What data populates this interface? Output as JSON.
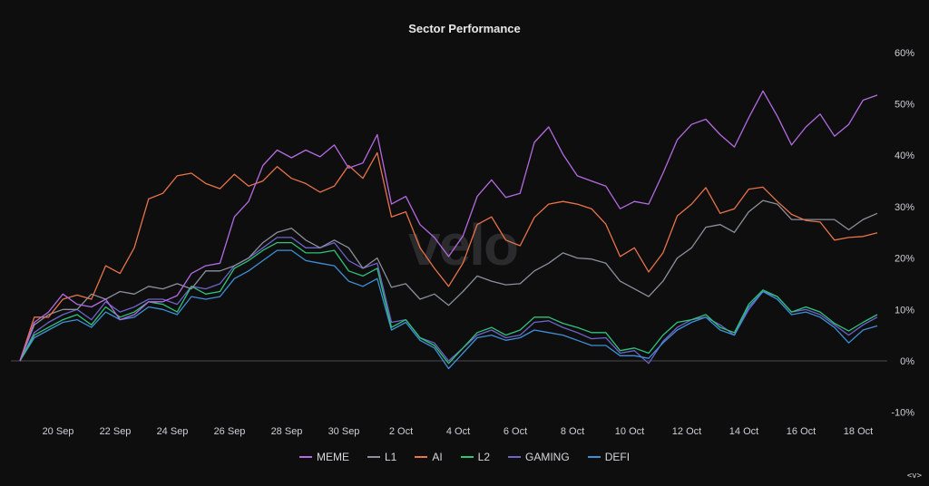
{
  "chart_data": {
    "type": "line",
    "title": "Sector Performance",
    "watermark": "velo",
    "corner_label": "<v>",
    "xlabel": "",
    "ylabel": "",
    "ylim": [
      -10,
      60
    ],
    "y_ticks": [
      "60%",
      "50%",
      "40%",
      "30%",
      "20%",
      "10%",
      "0%",
      "-10%"
    ],
    "y_tick_values": [
      60,
      50,
      40,
      30,
      20,
      10,
      0,
      -10
    ],
    "x_ticks": [
      "20 Sep",
      "22 Sep",
      "24 Sep",
      "26 Sep",
      "28 Sep",
      "30 Sep",
      "2 Oct",
      "4 Oct",
      "6 Oct",
      "8 Oct",
      "10 Oct",
      "12 Oct",
      "14 Oct",
      "16 Oct",
      "18 Oct"
    ],
    "grid": false,
    "legend_position": "bottom",
    "x": [
      "18 Sep 16:00",
      "19 Sep 04:00",
      "19 Sep 16:00",
      "20 Sep 04:00",
      "20 Sep 16:00",
      "21 Sep 04:00",
      "21 Sep 16:00",
      "22 Sep 04:00",
      "22 Sep 16:00",
      "23 Sep 04:00",
      "23 Sep 16:00",
      "24 Sep 04:00",
      "24 Sep 16:00",
      "25 Sep 04:00",
      "25 Sep 16:00",
      "26 Sep 04:00",
      "26 Sep 16:00",
      "27 Sep 04:00",
      "27 Sep 16:00",
      "28 Sep 04:00",
      "28 Sep 16:00",
      "29 Sep 04:00",
      "29 Sep 16:00",
      "30 Sep 04:00",
      "30 Sep 16:00",
      "1 Oct 04:00",
      "1 Oct 16:00",
      "2 Oct 04:00",
      "2 Oct 16:00",
      "3 Oct 04:00",
      "3 Oct 16:00",
      "4 Oct 04:00",
      "4 Oct 16:00",
      "5 Oct 04:00",
      "5 Oct 16:00",
      "6 Oct 04:00",
      "6 Oct 16:00",
      "7 Oct 04:00",
      "7 Oct 16:00",
      "8 Oct 04:00",
      "8 Oct 16:00",
      "9 Oct 04:00",
      "9 Oct 16:00",
      "10 Oct 04:00",
      "10 Oct 16:00",
      "11 Oct 04:00",
      "11 Oct 16:00",
      "12 Oct 04:00",
      "12 Oct 16:00",
      "13 Oct 04:00",
      "13 Oct 16:00",
      "14 Oct 04:00",
      "14 Oct 16:00",
      "15 Oct 04:00",
      "15 Oct 16:00",
      "16 Oct 04:00",
      "16 Oct 16:00",
      "17 Oct 04:00",
      "17 Oct 16:00",
      "18 Oct 04:00",
      "18 Oct 16:00"
    ],
    "series": [
      {
        "name": "MEME",
        "color": "#b36be0",
        "values": [
          0,
          7.5,
          9.5,
          13,
          11,
          10.5,
          12,
          8,
          9,
          11.5,
          11.5,
          12.7,
          17,
          18.5,
          19,
          28,
          31,
          38,
          41,
          39.5,
          41,
          39.7,
          42,
          37.5,
          38.5,
          44,
          30.5,
          32,
          26.5,
          24,
          20.3,
          24.3,
          32,
          35.2,
          31.8,
          32.6,
          42.5,
          45.5,
          40.2,
          36,
          35,
          34,
          29.6,
          31,
          30.5,
          36.5,
          43,
          46,
          47,
          44,
          41.6,
          47.3,
          52.5,
          47.6,
          42,
          45.5,
          48,
          43.7,
          46,
          50.7,
          51.7
        ]
      },
      {
        "name": "L1",
        "color": "#8b909c",
        "values": [
          0,
          7,
          9,
          10,
          10,
          13,
          12,
          13.5,
          13,
          14.5,
          14,
          15,
          14,
          17.5,
          17.5,
          18.5,
          20,
          23,
          25,
          25.8,
          23.5,
          22,
          23.5,
          22,
          18,
          20,
          14.3,
          15,
          12,
          13,
          10.8,
          13.5,
          16.5,
          15.5,
          14.8,
          15,
          17.5,
          19,
          21,
          20,
          19.8,
          19,
          15.5,
          14,
          12.5,
          15.5,
          20,
          22,
          26,
          26.5,
          25,
          29,
          31.2,
          30.5,
          27.5,
          27.5,
          27.5,
          27.5,
          25.5,
          27.5,
          28.7
        ]
      },
      {
        "name": "AI",
        "color": "#e8734a",
        "values": [
          0,
          8.5,
          8.5,
          12,
          12.8,
          12,
          18.5,
          17,
          22,
          31.5,
          32.6,
          36,
          36.5,
          34.5,
          33.5,
          36.3,
          34,
          35,
          37.8,
          35.5,
          34.5,
          32.8,
          34,
          38,
          35.5,
          40.5,
          28,
          29,
          22,
          18,
          14.5,
          19,
          26.5,
          28,
          23.5,
          22.4,
          27.9,
          30.5,
          31,
          30.5,
          29.6,
          26.6,
          20.3,
          22,
          17.3,
          21,
          28.2,
          30.5,
          33.7,
          28.7,
          29.6,
          33.4,
          33.8,
          31,
          28.5,
          27.3,
          27,
          23.5,
          24,
          24.2,
          24.9
        ]
      },
      {
        "name": "L2",
        "color": "#2fc47a",
        "values": [
          0,
          5,
          6.5,
          8,
          9,
          7,
          10.5,
          8.5,
          9.5,
          11.5,
          11,
          9.5,
          14.5,
          13,
          13.5,
          18,
          19.5,
          21.5,
          23,
          23,
          21,
          21,
          21.5,
          17.5,
          16.5,
          18,
          6.5,
          8,
          4.5,
          3,
          -0.5,
          2.5,
          5.5,
          6.5,
          5,
          6,
          8.5,
          8.5,
          7.3,
          6.5,
          5.5,
          5.5,
          2,
          2.5,
          1.5,
          5,
          7.5,
          8,
          9,
          6.5,
          5.5,
          11,
          13.8,
          12.5,
          9.5,
          10.5,
          9.5,
          7.3,
          5.8,
          7.5,
          9
        ]
      },
      {
        "name": "GAMING",
        "color": "#6d63c9",
        "values": [
          0,
          5.5,
          7.5,
          9,
          10,
          8,
          11.5,
          9.5,
          10.5,
          12,
          12,
          11,
          14.5,
          14,
          15,
          18.5,
          20,
          22,
          24,
          24,
          22,
          22,
          23,
          19.5,
          18,
          19,
          7.5,
          8,
          4.5,
          3.5,
          0,
          2.5,
          5,
          6,
          4.5,
          5,
          7.5,
          7.8,
          6.5,
          5.5,
          4.3,
          4.5,
          1.5,
          2,
          -0.5,
          3.8,
          6.5,
          8,
          8.5,
          7,
          5,
          10,
          13.5,
          12.5,
          9.5,
          10,
          9,
          7,
          5,
          7,
          8.5
        ]
      },
      {
        "name": "DEFI",
        "color": "#3f8fd6",
        "values": [
          0,
          4.5,
          6,
          7.5,
          8,
          6.5,
          9.5,
          8,
          8.5,
          10.5,
          10,
          9,
          12.5,
          12,
          12.5,
          16,
          17.5,
          19.5,
          21.5,
          21.5,
          19.5,
          19,
          18.5,
          15.5,
          14.5,
          16,
          6,
          7.5,
          4,
          2.5,
          -1.5,
          1.5,
          4.5,
          5,
          4,
          4.5,
          6,
          5.5,
          5,
          4,
          3,
          3,
          1,
          1,
          0.5,
          3.5,
          6,
          7.5,
          8.5,
          6,
          5,
          10.5,
          13.5,
          12,
          9,
          9.5,
          8.5,
          6.5,
          3.5,
          6,
          6.8
        ]
      }
    ]
  }
}
